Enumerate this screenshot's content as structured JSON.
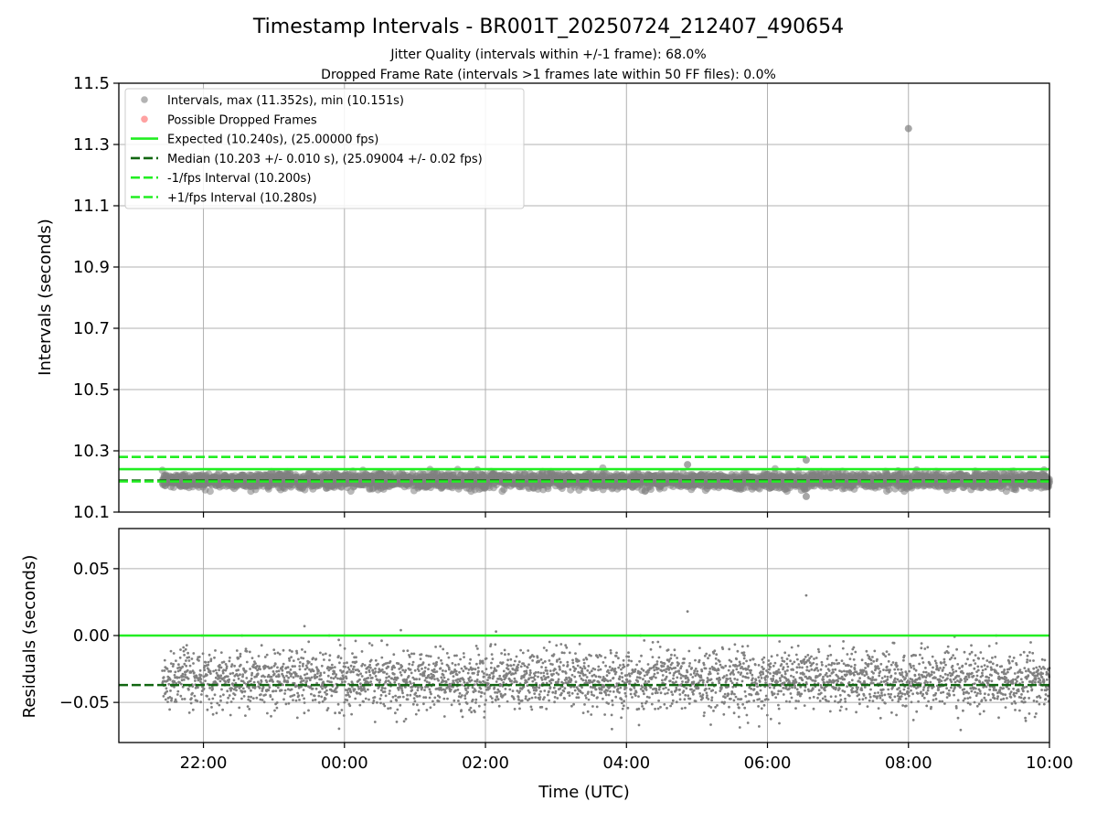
{
  "chart_data": [
    {
      "type": "scatter",
      "title": "Timestamp Intervals - BR001T_20250724_212407_490654",
      "subtitle_lines": [
        "Jitter Quality (intervals within +/-1 frame): 68.0%",
        "Dropped Frame Rate (intervals >1 frames late within 50 FF files): 0.0%"
      ],
      "xlabel": "",
      "ylabel": "Intervals (seconds)",
      "x_range": [
        "20:48",
        "10:00"
      ],
      "x_ticks": [
        "22:00",
        "00:00",
        "02:00",
        "04:00",
        "06:00",
        "08:00",
        "10:00"
      ],
      "ylim": [
        10.1,
        11.5
      ],
      "y_ticks": [
        "10.1",
        "10.3",
        "10.5",
        "10.7",
        "10.9",
        "11.1",
        "11.3",
        "11.5"
      ],
      "grid": true,
      "legend_position": "top-left",
      "data_x_range": [
        "21:25",
        "10:00"
      ],
      "series": [
        {
          "name": "Intervals, max (11.352s), min (10.151s)",
          "kind": "points",
          "color": "#808080",
          "typical_center": 10.203,
          "typical_spread": 0.012,
          "min": 10.151,
          "max": 11.352,
          "notable_points": [
            {
              "x": "08:00",
              "y": 11.352
            },
            {
              "x": "06:33",
              "y": 10.151
            },
            {
              "x": "06:33",
              "y": 10.27
            },
            {
              "x": "04:52",
              "y": 10.255
            }
          ]
        },
        {
          "name": "Possible Dropped Frames",
          "kind": "points",
          "color": "#ff6464",
          "count": 0
        },
        {
          "name": "Expected (10.240s), (25.00000 fps)",
          "kind": "hline",
          "y": 10.24,
          "color": "#22ee22",
          "dash": "solid"
        },
        {
          "name": "Median (10.203 +/- 0.010 s), (25.09004 +/- 0.02 fps)",
          "kind": "hline",
          "y": 10.203,
          "color": "#116611",
          "dash": "dashed"
        },
        {
          "name": "-1/fps Interval (10.200s)",
          "kind": "hline",
          "y": 10.2,
          "color": "#22ee22",
          "dash": "dashed"
        },
        {
          "name": "+1/fps Interval (10.280s)",
          "kind": "hline",
          "y": 10.28,
          "color": "#22ee22",
          "dash": "dashed"
        }
      ]
    },
    {
      "type": "scatter",
      "xlabel": "Time (UTC)",
      "ylabel": "Residuals (seconds)",
      "x_range": [
        "20:48",
        "10:00"
      ],
      "x_ticks": [
        "22:00",
        "00:00",
        "02:00",
        "04:00",
        "06:00",
        "08:00",
        "10:00"
      ],
      "ylim": [
        -0.08,
        0.08
      ],
      "y_ticks": [
        "0.05",
        "0.00",
        "−0.05"
      ],
      "grid": true,
      "series": [
        {
          "kind": "points",
          "color": "#808080",
          "typical_center": -0.033,
          "typical_spread": 0.011,
          "notable_points": [
            {
              "x": "06:33",
              "y": 0.03
            },
            {
              "x": "04:52",
              "y": 0.018
            },
            {
              "x": "23:26",
              "y": 0.007
            },
            {
              "x": "02:09",
              "y": 0.003
            },
            {
              "x": "00:48",
              "y": 0.004
            }
          ]
        },
        {
          "kind": "hline",
          "y": 0.0,
          "color": "#22ee22",
          "dash": "solid"
        },
        {
          "kind": "hline",
          "y": -0.037,
          "color": "#116611",
          "dash": "dashed"
        }
      ]
    }
  ]
}
